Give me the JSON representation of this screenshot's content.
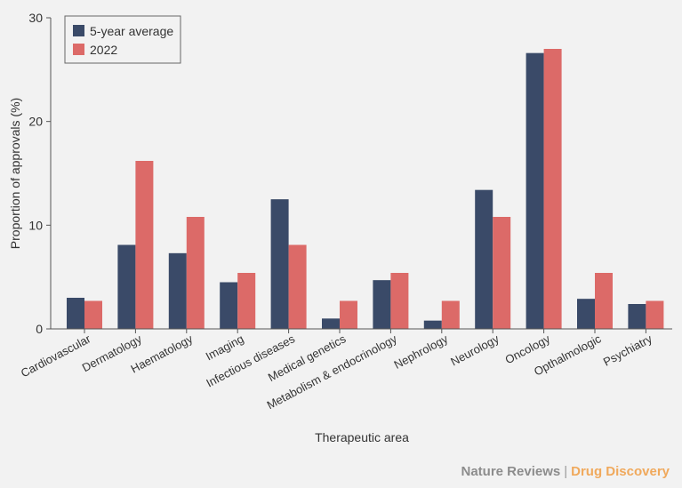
{
  "chart_data": {
    "type": "bar",
    "title": "",
    "xlabel": "Therapeutic area",
    "ylabel": "Proportion of approvals (%)",
    "ylim": [
      0,
      30
    ],
    "yticks": [
      0,
      10,
      20,
      30
    ],
    "legend_position": "top-left",
    "categories": [
      "Cardiovascular",
      "Dermatology",
      "Haematology",
      "Imaging",
      "Infectious diseases",
      "Medical genetics",
      "Metabolism & endocrinology",
      "Nephrology",
      "Neurology",
      "Oncology",
      "Opthalmologic",
      "Psychiatry"
    ],
    "series": [
      {
        "name": "5-year average",
        "color": "#3a4a68",
        "values": [
          3.0,
          8.1,
          7.3,
          4.5,
          12.5,
          1.0,
          4.7,
          0.8,
          13.4,
          26.6,
          2.9,
          2.4
        ]
      },
      {
        "name": "2022",
        "color": "#dc6a68",
        "values": [
          2.7,
          16.2,
          10.8,
          5.4,
          8.1,
          2.7,
          5.4,
          2.7,
          10.8,
          27.0,
          5.4,
          2.7
        ]
      }
    ]
  },
  "footer": {
    "brand": "Nature Reviews",
    "separator": "|",
    "journal": "Drug Discovery"
  }
}
